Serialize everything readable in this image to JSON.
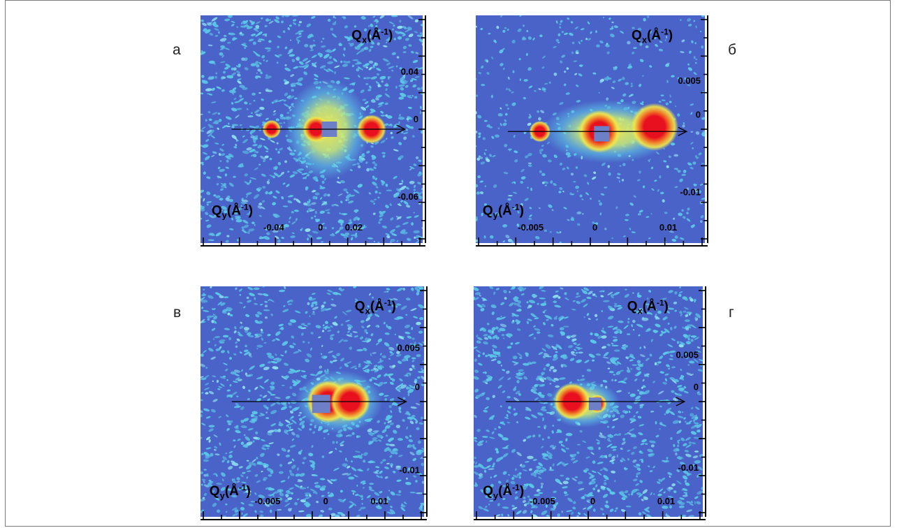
{
  "panels": [
    {
      "letter": "а",
      "qx_label": "Qx(Å-1)",
      "qy_label": "Qy(Å-1)",
      "x_ticks": [
        "-0.04",
        "0",
        "0.02"
      ],
      "y_ticks": [
        "0.04",
        "0",
        "-0.06"
      ],
      "peaks": [
        {
          "label": "left satellite",
          "intensity": "high"
        },
        {
          "label": "central peak",
          "intensity": "high"
        },
        {
          "label": "right satellite",
          "intensity": "high"
        }
      ]
    },
    {
      "letter": "б",
      "qx_label": "Qx(Å-1)",
      "qy_label": "Qy(Å-1)",
      "x_ticks": [
        "-0.005",
        "0",
        "0.01"
      ],
      "y_ticks": [
        "0.005",
        "0",
        "-0.01"
      ],
      "peaks": [
        {
          "label": "left satellite",
          "intensity": "low"
        },
        {
          "label": "central peak",
          "intensity": "high"
        },
        {
          "label": "right satellite",
          "intensity": "high"
        }
      ]
    },
    {
      "letter": "в",
      "qx_label": "Qx(Å-1)",
      "qy_label": "Qy(Å-1)",
      "x_ticks": [
        "-0.005",
        "0",
        "0.01"
      ],
      "y_ticks": [
        "0.005",
        "0",
        "-0.01"
      ],
      "peaks": [
        {
          "label": "central peak",
          "intensity": "high"
        },
        {
          "label": "right peak",
          "intensity": "high"
        }
      ]
    },
    {
      "letter": "г",
      "qx_label": "Qx(Å-1)",
      "qy_label": "Qy(Å-1)",
      "x_ticks": [
        "-0.005",
        "0",
        "0.01"
      ],
      "y_ticks": [
        "0.005",
        "0",
        "-0.01"
      ],
      "peaks": [
        {
          "label": "left peak",
          "intensity": "high"
        },
        {
          "label": "central peak",
          "intensity": "medium"
        }
      ]
    }
  ],
  "colors": {
    "background": "#4a63c8",
    "speckle": "#5cc8e8",
    "halo": "#f2e64a",
    "peak_mid": "#f07a28",
    "peak_core": "#e8101e",
    "beamstop": "#6d7fc6"
  }
}
